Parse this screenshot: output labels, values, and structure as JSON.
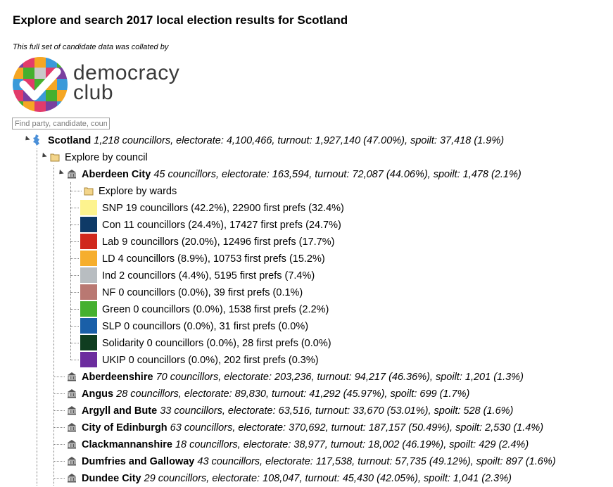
{
  "page": {
    "title": "Explore and search 2017 local election results for Scotland",
    "credit": "This full set of candidate data was collated by",
    "logo_text_line1": "democracy",
    "logo_text_line2": "club"
  },
  "search": {
    "placeholder": "Find party, candidate, council"
  },
  "tree": {
    "root": {
      "name": "Scotland",
      "stats": "1,218 councillors, electorate: 4,100,466, turnout: 1,927,140 (47.00%), spoilt: 37,418 (1.9%)"
    },
    "explore_by_council": "Explore by council",
    "explore_by_wards": "Explore by wards",
    "councils": [
      {
        "name": "Aberdeen City",
        "stats": "45 councillors, electorate: 163,594, turnout: 72,087 (44.06%), spoilt: 1,478 (2.1%)"
      },
      {
        "name": "Aberdeenshire",
        "stats": "70 councillors, electorate: 203,236, turnout: 94,217 (46.36%), spoilt: 1,201 (1.3%)"
      },
      {
        "name": "Angus",
        "stats": "28 councillors, electorate: 89,830, turnout: 41,292 (45.97%), spoilt: 699 (1.7%)"
      },
      {
        "name": "Argyll and Bute",
        "stats": "33 councillors, electorate: 63,516, turnout: 33,670 (53.01%), spoilt: 528 (1.6%)"
      },
      {
        "name": "City of Edinburgh",
        "stats": "63 councillors, electorate: 370,692, turnout: 187,157 (50.49%), spoilt: 2,530 (1.4%)"
      },
      {
        "name": "Clackmannanshire",
        "stats": "18 councillors, electorate: 38,977, turnout: 18,002 (46.19%), spoilt: 429 (2.4%)"
      },
      {
        "name": "Dumfries and Galloway",
        "stats": "43 councillors, electorate: 117,538, turnout: 57,735 (49.12%), spoilt: 897 (1.6%)"
      },
      {
        "name": "Dundee City",
        "stats": "29 councillors, electorate: 108,047, turnout: 45,430 (42.05%), spoilt: 1,041 (2.3%)"
      }
    ],
    "parties": [
      {
        "label": "SNP 19 councillors (42.2%), 22900 first prefs (32.4%)",
        "color": "#fdf38e"
      },
      {
        "label": "Con 11 councillors (24.4%), 17427 first prefs (24.7%)",
        "color": "#0e3a67"
      },
      {
        "label": "Lab 9 councillors (20.0%), 12496 first prefs (17.7%)",
        "color": "#d0281d"
      },
      {
        "label": "LD 4 councillors (8.9%), 10753 first prefs (15.2%)",
        "color": "#f6ae2d"
      },
      {
        "label": "Ind 2 councillors (4.4%), 5195 first prefs (7.4%)",
        "color": "#b8bdc1"
      },
      {
        "label": "NF 0 councillors (0.0%), 39 first prefs (0.1%)",
        "color": "#b97872"
      },
      {
        "label": "Green 0 councillors (0.0%), 1538 first prefs (2.2%)",
        "color": "#45b02f"
      },
      {
        "label": "SLP 0 councillors (0.0%), 31 first prefs (0.0%)",
        "color": "#1a5fa8"
      },
      {
        "label": "Solidarity 0 councillors (0.0%), 28 first prefs (0.0%)",
        "color": "#0f3d20"
      },
      {
        "label": "UKIP 0 councillors (0.0%), 202 first prefs (0.3%)",
        "color": "#6c2d9e"
      }
    ]
  }
}
